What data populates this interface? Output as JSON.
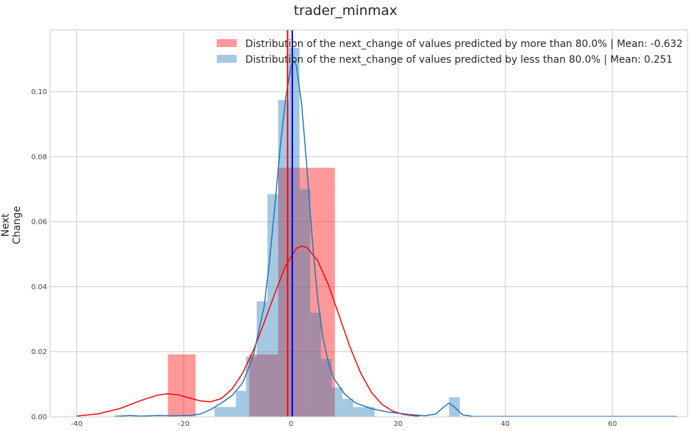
{
  "chart_data": {
    "type": "histogram",
    "title": "trader_minmax",
    "xlabel": "",
    "ylabel": "Next Change",
    "xlim": [
      -45,
      74
    ],
    "ylim": [
      0,
      0.119
    ],
    "grid": true,
    "legend_position": "top-right",
    "x_ticks": [
      -40,
      -20,
      0,
      20,
      40,
      60
    ],
    "y_ticks": [
      0.0,
      0.02,
      0.04,
      0.06,
      0.08,
      0.1
    ],
    "series": [
      {
        "name": "Distribution of the next_change of values predicted by more than 80.0% | Mean: -0.632",
        "color": "#ff0000",
        "mean": -0.632,
        "bins": [
          {
            "x0": -23,
            "x1": -17.8,
            "density": 0.0192
          },
          {
            "x0": -7.8,
            "x1": -2.4,
            "density": 0.0192
          },
          {
            "x0": -2.4,
            "x1": 2.8,
            "density": 0.0766
          },
          {
            "x0": 2.8,
            "x1": 8.2,
            "density": 0.0766
          }
        ],
        "kde": [
          [
            -40,
            0.0002
          ],
          [
            -36,
            0.0009
          ],
          [
            -32,
            0.0025
          ],
          [
            -28,
            0.005
          ],
          [
            -25,
            0.0066
          ],
          [
            -23,
            0.0071
          ],
          [
            -21,
            0.0067
          ],
          [
            -19,
            0.0058
          ],
          [
            -17,
            0.0049
          ],
          [
            -15,
            0.0046
          ],
          [
            -13,
            0.0056
          ],
          [
            -11,
            0.0085
          ],
          [
            -9,
            0.0135
          ],
          [
            -7,
            0.0205
          ],
          [
            -5,
            0.029
          ],
          [
            -3,
            0.038
          ],
          [
            -1,
            0.0465
          ],
          [
            1,
            0.0518
          ],
          [
            2,
            0.0525
          ],
          [
            3,
            0.052
          ],
          [
            5,
            0.048
          ],
          [
            7,
            0.0405
          ],
          [
            9,
            0.031
          ],
          [
            11,
            0.0215
          ],
          [
            13,
            0.0135
          ],
          [
            15,
            0.0075
          ],
          [
            17,
            0.0038
          ],
          [
            19,
            0.0017
          ],
          [
            21,
            0.0007
          ],
          [
            24,
            0.0001
          ]
        ]
      },
      {
        "name": "Distribution of the next_change of values predicted by less than 80.0% | Mean: 0.251",
        "color": "#1f77b4",
        "mean": 0.251,
        "bins": [
          {
            "x0": -14.3,
            "x1": -10.3,
            "density": 0.003
          },
          {
            "x0": -10.3,
            "x1": -8.4,
            "density": 0.008
          },
          {
            "x0": -8.4,
            "x1": -6.4,
            "density": 0.0185
          },
          {
            "x0": -6.4,
            "x1": -4.4,
            "density": 0.0355
          },
          {
            "x0": -4.4,
            "x1": -2.4,
            "density": 0.0685
          },
          {
            "x0": -2.4,
            "x1": -0.4,
            "density": 0.0975
          },
          {
            "x0": -0.4,
            "x1": 1.6,
            "density": 0.1135
          },
          {
            "x0": 1.6,
            "x1": 3.6,
            "density": 0.07
          },
          {
            "x0": 3.6,
            "x1": 5.6,
            "density": 0.032
          },
          {
            "x0": 5.6,
            "x1": 7.6,
            "density": 0.0178
          },
          {
            "x0": 7.6,
            "x1": 9.6,
            "density": 0.009
          },
          {
            "x0": 9.6,
            "x1": 11.6,
            "density": 0.0055
          },
          {
            "x0": 11.6,
            "x1": 15.6,
            "density": 0.003
          },
          {
            "x0": 29.5,
            "x1": 31.5,
            "density": 0.006
          }
        ],
        "kde": [
          [
            -33,
            0.0001
          ],
          [
            -30,
            0.0004
          ],
          [
            -28,
            0.0002
          ],
          [
            -25,
            0.0004
          ],
          [
            -22,
            0.0003
          ],
          [
            -19,
            0.0004
          ],
          [
            -17,
            0.0008
          ],
          [
            -15,
            0.0022
          ],
          [
            -13,
            0.0042
          ],
          [
            -11,
            0.0065
          ],
          [
            -9,
            0.0105
          ],
          [
            -7,
            0.019
          ],
          [
            -5,
            0.034
          ],
          [
            -4,
            0.048
          ],
          [
            -3,
            0.065
          ],
          [
            -2,
            0.083
          ],
          [
            -1,
            0.098
          ],
          [
            0,
            0.108
          ],
          [
            0.5,
            0.1095
          ],
          [
            1,
            0.108
          ],
          [
            2,
            0.096
          ],
          [
            3,
            0.076
          ],
          [
            4,
            0.054
          ],
          [
            5,
            0.036
          ],
          [
            6,
            0.024
          ],
          [
            7,
            0.0165
          ],
          [
            8,
            0.0118
          ],
          [
            10,
            0.007
          ],
          [
            12,
            0.0043
          ],
          [
            15,
            0.0025
          ],
          [
            18,
            0.0015
          ],
          [
            22,
            0.0007
          ],
          [
            25,
            0.0003
          ],
          [
            27,
            0.0008
          ],
          [
            28.5,
            0.003
          ],
          [
            29.5,
            0.0042
          ],
          [
            30.5,
            0.003
          ],
          [
            32,
            0.0006
          ],
          [
            34,
            0.0001
          ],
          [
            45,
            0.0001
          ],
          [
            60,
            0.0001
          ],
          [
            72,
            0.0001
          ]
        ]
      }
    ]
  }
}
